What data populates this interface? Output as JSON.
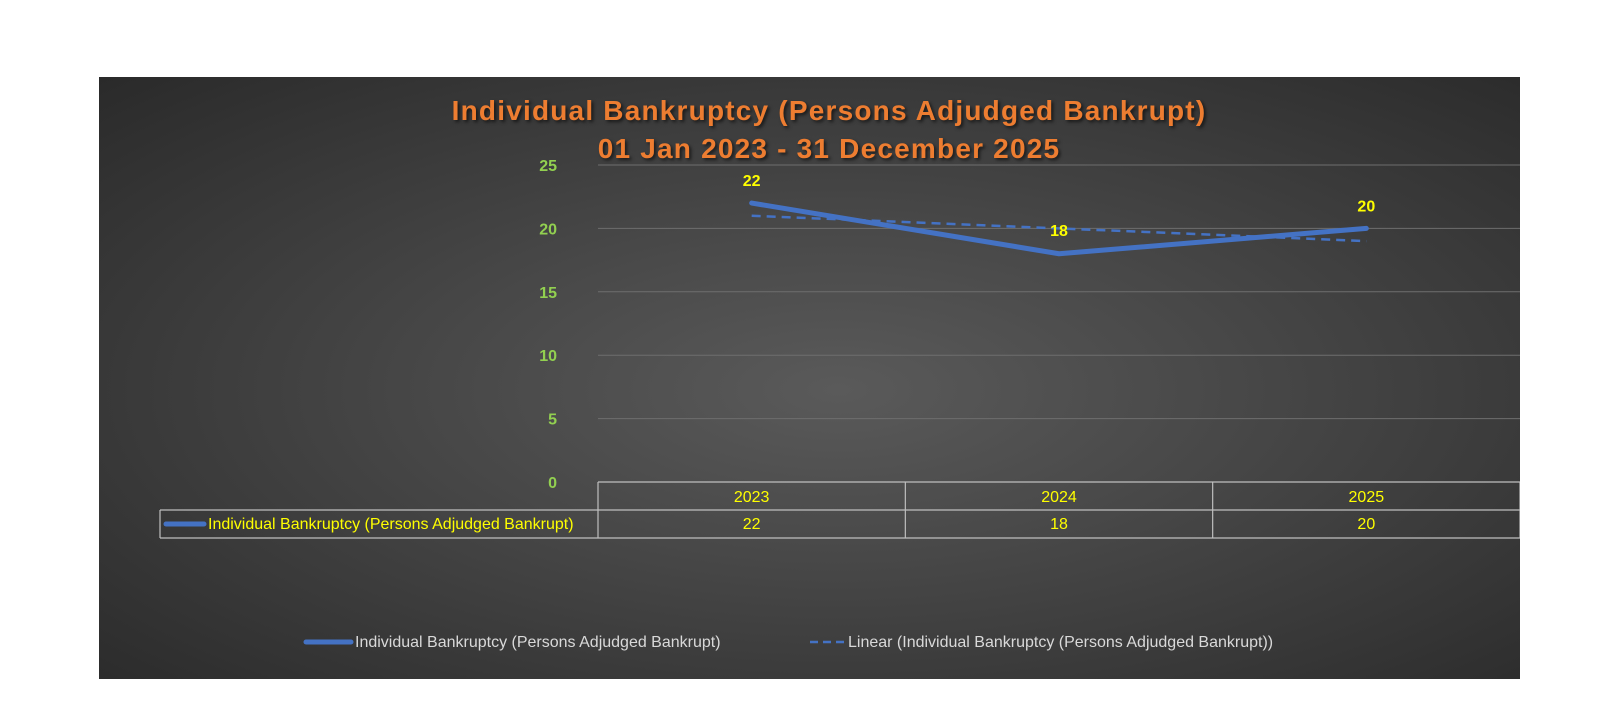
{
  "chart_data": {
    "type": "line",
    "title": [
      "Individual Bankruptcy (Persons Adjudged Bankrupt)",
      "01 Jan 2023 - 31 December 2025"
    ],
    "categories": [
      "2023",
      "2024",
      "2025"
    ],
    "series": [
      {
        "name": "Individual Bankruptcy (Persons Adjudged Bankrupt)",
        "values": [
          22,
          18,
          20
        ],
        "color": "#4472C4",
        "style": "solid"
      },
      {
        "name": "Linear (Individual Bankruptcy (Persons Adjudged Bankrupt))",
        "values": [
          21,
          20,
          19
        ],
        "color": "#4472C4",
        "style": "dashed",
        "trendline": true
      }
    ],
    "y_ticks": [
      "0",
      "5",
      "10",
      "15",
      "20",
      "25"
    ],
    "ylim": [
      0,
      25
    ],
    "grid": true,
    "data_table": true,
    "legend_position": "bottom",
    "colors": {
      "title": "#ED7D31",
      "y_ticks": "#92D050",
      "labels": "#FFFF00",
      "legend_text": "#D9D9D9",
      "line": "#4472C4"
    }
  }
}
